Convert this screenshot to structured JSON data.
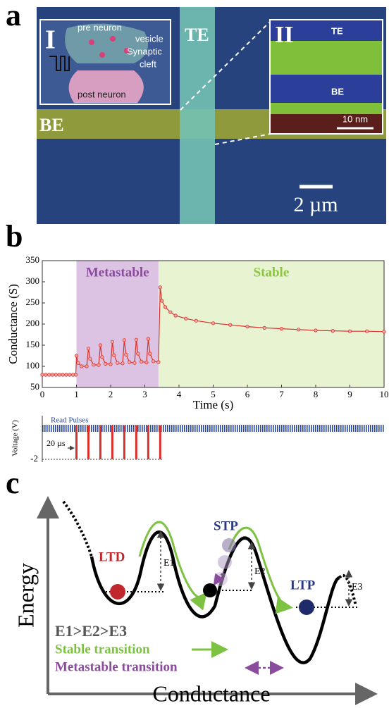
{
  "labels": {
    "a": "a",
    "b": "b",
    "c": "c"
  },
  "micrograph": {
    "te": "TE",
    "be": "BE",
    "inset1": "I",
    "inset2": "II",
    "pre": "pre neuron",
    "vesicle": "vesicle",
    "synaptic": "Synaptic",
    "cleft": "cleft",
    "post": "post neuron",
    "inset_te": "TE",
    "inset_be": "BE",
    "inset_scale": "10 nm",
    "scale": "2 µm"
  },
  "chart_data": [
    {
      "type": "line",
      "xlabel": "Time (s)",
      "ylabel": "Conductance (S)",
      "color": "#d9302c",
      "xlim": [
        0,
        10
      ],
      "ylim": [
        50,
        350
      ],
      "xticks": [
        0,
        1,
        2,
        3,
        4,
        5,
        6,
        7,
        8,
        9,
        10
      ],
      "yticks": [
        50,
        100,
        150,
        200,
        250,
        300,
        350
      ],
      "regions": [
        {
          "name": "Metastable",
          "start": 1,
          "end": 3.4,
          "color": "#dcc3e3"
        },
        {
          "name": "Stable",
          "start": 3.4,
          "end": 10,
          "color": "#e8f3d2"
        }
      ],
      "x": [
        0,
        0.1,
        0.2,
        0.3,
        0.4,
        0.5,
        0.6,
        0.7,
        0.8,
        0.9,
        0.98,
        1.0,
        1.05,
        1.15,
        1.3,
        1.35,
        1.4,
        1.5,
        1.65,
        1.7,
        1.75,
        1.85,
        2.0,
        2.05,
        2.1,
        2.2,
        2.35,
        2.4,
        2.45,
        2.55,
        2.7,
        2.75,
        2.8,
        2.9,
        3.05,
        3.1,
        3.15,
        3.25,
        3.4,
        3.45,
        3.5,
        3.6,
        3.75,
        3.9,
        4.2,
        4.5,
        5.0,
        5.5,
        6.0,
        6.5,
        7.0,
        7.5,
        8.0,
        8.5,
        9.0,
        9.5,
        10.0
      ],
      "values": [
        80,
        80,
        80,
        80,
        80,
        80,
        80,
        80,
        80,
        80,
        80,
        125,
        108,
        100,
        100,
        142,
        118,
        104,
        103,
        150,
        122,
        106,
        105,
        158,
        126,
        108,
        107,
        162,
        128,
        110,
        108,
        163,
        130,
        111,
        109,
        165,
        130,
        112,
        110,
        287,
        255,
        240,
        228,
        220,
        213,
        208,
        202,
        198,
        194,
        191,
        189,
        187,
        185,
        184,
        183,
        183,
        182
      ]
    },
    {
      "type": "pulse",
      "ylabel": "Voltage (V)",
      "color": "#d9302c",
      "xlim": [
        0,
        10
      ],
      "ylim": [
        -2,
        0
      ],
      "yticks": [
        -2
      ],
      "x": [
        1.0,
        1.35,
        1.7,
        2.05,
        2.4,
        2.75,
        3.1,
        3.45
      ],
      "values": [
        -2,
        -2,
        -2,
        -2,
        -2,
        -2,
        -2,
        -2
      ],
      "annotations": [
        "Read Pulses",
        "20 µs"
      ]
    }
  ],
  "diagram": {
    "ltd": "LTD",
    "stp": "STP",
    "ltp": "LTP",
    "e1": "E1",
    "e2": "E2",
    "e3": "E3",
    "order": "E1>E2>E3",
    "stable": "Stable transition",
    "metastable": "Metastable transition",
    "ylabel": "Energy",
    "xlabel": "Conductance"
  }
}
